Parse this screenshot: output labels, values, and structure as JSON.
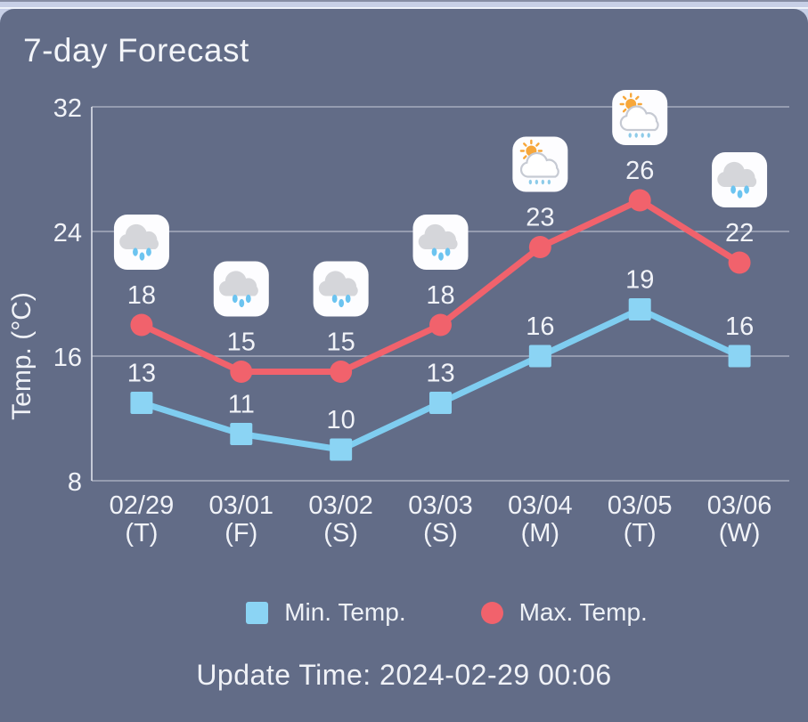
{
  "header": {
    "title": "7-day Forecast"
  },
  "update_time": "Update Time: 2024-02-29 00:06",
  "legend": [
    {
      "label": "Min. Temp.",
      "shape": "square",
      "color": "#8bd4f4"
    },
    {
      "label": "Max. Temp.",
      "shape": "circle",
      "color": "#f1626c"
    }
  ],
  "colors": {
    "panel_bg": "#626c87",
    "text": "#f1f3f8",
    "grid": "#dde1eb",
    "min_series": "#7fcdf0",
    "max_series": "#f1626c",
    "icon_sun": "#f7a73a",
    "icon_cloud": "#d5d6da",
    "icon_rain_drop": "#6cc4f0"
  },
  "chart_data": {
    "type": "line",
    "title": "7-day Forecast",
    "categories": [
      {
        "date": "02/29",
        "day": "(T)"
      },
      {
        "date": "03/01",
        "day": "(F)"
      },
      {
        "date": "03/02",
        "day": "(S)"
      },
      {
        "date": "03/03",
        "day": "(S)"
      },
      {
        "date": "03/04",
        "day": "(M)"
      },
      {
        "date": "03/05",
        "day": "(T)"
      },
      {
        "date": "03/06",
        "day": "(W)"
      }
    ],
    "series": [
      {
        "name": "Min. Temp.",
        "marker": "square",
        "color": "#7fcdf0",
        "marker_color": "#8bd4f4",
        "values": [
          13,
          11,
          10,
          13,
          16,
          19,
          16
        ]
      },
      {
        "name": "Max. Temp.",
        "marker": "circle",
        "color": "#f1626c",
        "marker_color": "#f1626c",
        "values": [
          18,
          15,
          15,
          18,
          23,
          26,
          22
        ]
      }
    ],
    "icons": [
      "rain",
      "rain",
      "rain",
      "rain",
      "sun-rain",
      "sun-rain",
      "rain"
    ],
    "ylabel": "Temp. (°C)",
    "ylim": [
      8,
      32
    ],
    "yticks": [
      8,
      16,
      24,
      32
    ],
    "grid": true,
    "legend_position": "bottom"
  }
}
